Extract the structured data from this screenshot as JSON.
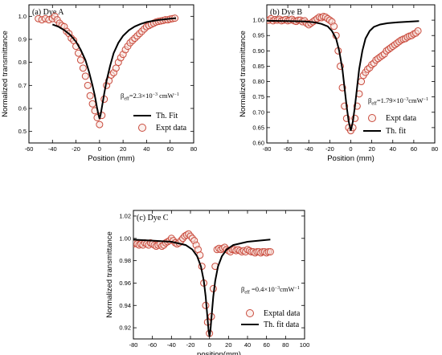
{
  "chart_data": [
    {
      "type": "scatter",
      "panel_label": "(a)  Dye A",
      "xlabel": "Position (mm)",
      "ylabel": "Normalized transmittance",
      "xlim": [
        -60,
        80
      ],
      "ylim": [
        0.45,
        1.05
      ],
      "xticks": [
        -60,
        -40,
        -20,
        0,
        20,
        40,
        60,
        80
      ],
      "xtick_labels": [
        "-60",
        "-40",
        "-20",
        "0",
        "20",
        "40",
        "60",
        "80"
      ],
      "yticks": [
        0.5,
        0.6,
        0.7,
        0.8,
        0.9,
        1.0
      ],
      "ytick_labels": [
        "0.5",
        "0.6",
        "0.7",
        "0.8",
        "0.9",
        "1.0"
      ],
      "annotation": {
        "base": "β",
        "sub": "eff",
        "text": "=2.3×10",
        "sup": "−3",
        "unit": " cmW",
        "unit_sup": "−1"
      },
      "legend_position": "lower-right",
      "legend": [
        "Th. Fit",
        "Expt data"
      ],
      "series": [
        {
          "name": "Th. Fit",
          "kind": "line",
          "x": [
            -40,
            -35,
            -30,
            -25,
            -20,
            -16,
            -12,
            -9,
            -6,
            -4,
            -2,
            -1,
            0,
            1,
            2,
            4,
            6,
            9,
            12,
            16,
            20,
            25,
            30,
            35,
            40,
            45,
            50,
            55,
            60,
            65
          ],
          "y": [
            0.965,
            0.955,
            0.94,
            0.92,
            0.89,
            0.855,
            0.81,
            0.76,
            0.7,
            0.655,
            0.6,
            0.575,
            0.555,
            0.575,
            0.605,
            0.665,
            0.72,
            0.785,
            0.84,
            0.885,
            0.915,
            0.94,
            0.956,
            0.967,
            0.975,
            0.98,
            0.984,
            0.987,
            0.99,
            0.992
          ]
        },
        {
          "name": "Expt data",
          "kind": "scatter",
          "x": [
            -52,
            -49,
            -46,
            -43,
            -40,
            -38,
            -36,
            -34,
            -32,
            -30,
            -28,
            -26,
            -24,
            -22,
            -20,
            -18,
            -16,
            -14,
            -12,
            -10,
            -8,
            -6,
            -4,
            -2,
            0,
            2,
            4,
            6,
            8,
            10,
            12,
            14,
            16,
            18,
            20,
            22,
            24,
            26,
            28,
            30,
            32,
            34,
            36,
            38,
            40,
            42,
            44,
            46,
            48,
            50,
            52,
            54,
            56,
            58,
            60,
            62,
            64
          ],
          "y": [
            0.99,
            0.985,
            0.99,
            0.985,
            0.99,
            1.0,
            0.985,
            0.97,
            0.96,
            0.955,
            0.935,
            0.925,
            0.905,
            0.895,
            0.87,
            0.84,
            0.81,
            0.775,
            0.74,
            0.7,
            0.655,
            0.62,
            0.59,
            0.56,
            0.53,
            0.57,
            0.64,
            0.7,
            0.72,
            0.745,
            0.755,
            0.775,
            0.8,
            0.82,
            0.835,
            0.855,
            0.87,
            0.885,
            0.895,
            0.905,
            0.915,
            0.925,
            0.935,
            0.945,
            0.955,
            0.96,
            0.965,
            0.97,
            0.975,
            0.978,
            0.98,
            0.982,
            0.985,
            0.985,
            0.988,
            0.99,
            0.992
          ]
        }
      ]
    },
    {
      "type": "scatter",
      "panel_label": "(b)  Dye B",
      "xlabel": "Position (mm)",
      "ylabel": "Normalized transmittance",
      "xlim": [
        -80,
        80
      ],
      "ylim": [
        0.6,
        1.05
      ],
      "xticks": [
        -80,
        -60,
        -40,
        -20,
        0,
        20,
        40,
        60,
        80
      ],
      "xtick_labels": [
        "-80",
        "-60",
        "-40",
        "-20",
        "0",
        "20",
        "40",
        "60",
        "80"
      ],
      "yticks": [
        0.6,
        0.65,
        0.7,
        0.75,
        0.8,
        0.85,
        0.9,
        0.95,
        1.0
      ],
      "ytick_labels": [
        "0.60",
        "0.65",
        "0.70",
        "0.75",
        "0.80",
        "0.85",
        "0.90",
        "0.95",
        "1.00"
      ],
      "annotation": {
        "base": "β",
        "sub": "eff",
        "text": "=1.79×10",
        "sup": "−3",
        "unit": "cmW",
        "unit_sup": "−1"
      },
      "legend_position": "lower-right",
      "legend": [
        "Expt data",
        "Th. fit"
      ],
      "series": [
        {
          "name": "Expt data",
          "kind": "scatter",
          "x": [
            -80,
            -78,
            -76,
            -74,
            -72,
            -70,
            -68,
            -66,
            -64,
            -62,
            -60,
            -58,
            -56,
            -54,
            -52,
            -50,
            -48,
            -46,
            -44,
            -42,
            -40,
            -38,
            -36,
            -34,
            -32,
            -30,
            -28,
            -26,
            -24,
            -22,
            -20,
            -18,
            -16,
            -14,
            -12,
            -10,
            -8,
            -6,
            -4,
            -2,
            0,
            2,
            4,
            6,
            8,
            10,
            12,
            14,
            16,
            18,
            20,
            22,
            24,
            26,
            28,
            30,
            32,
            34,
            36,
            38,
            40,
            42,
            44,
            46,
            48,
            50,
            52,
            54,
            56,
            58,
            60,
            62,
            64
          ],
          "y": [
            1.0,
            1.0,
            1.005,
            0.998,
            1.002,
            1.0,
            1.003,
            0.998,
            1.0,
            1.002,
            0.998,
            1.0,
            1.003,
            0.998,
            0.996,
            1.0,
            1.0,
            0.995,
            0.998,
            0.99,
            0.985,
            0.99,
            0.995,
            1.0,
            1.005,
            1.01,
            1.008,
            1.012,
            1.01,
            1.005,
            1.0,
            0.995,
            0.98,
            0.95,
            0.9,
            0.85,
            0.78,
            0.72,
            0.68,
            0.65,
            0.64,
            0.65,
            0.68,
            0.72,
            0.76,
            0.8,
            0.82,
            0.83,
            0.84,
            0.845,
            0.855,
            0.86,
            0.87,
            0.875,
            0.88,
            0.885,
            0.89,
            0.9,
            0.905,
            0.91,
            0.915,
            0.92,
            0.925,
            0.93,
            0.935,
            0.938,
            0.94,
            0.945,
            0.948,
            0.95,
            0.955,
            0.958,
            0.965
          ]
        },
        {
          "name": "Th. fit",
          "kind": "line",
          "x": [
            -80,
            -60,
            -45,
            -35,
            -28,
            -22,
            -18,
            -14,
            -11,
            -8,
            -6,
            -4,
            -2,
            0,
            2,
            4,
            6,
            8,
            11,
            14,
            18,
            22,
            28,
            35,
            45,
            55,
            65
          ],
          "y": [
            0.998,
            0.997,
            0.996,
            0.993,
            0.988,
            0.98,
            0.965,
            0.94,
            0.9,
            0.84,
            0.78,
            0.72,
            0.67,
            0.64,
            0.67,
            0.72,
            0.78,
            0.84,
            0.9,
            0.94,
            0.965,
            0.978,
            0.986,
            0.99,
            0.993,
            0.995,
            0.997
          ]
        }
      ]
    },
    {
      "type": "scatter",
      "panel_label": "(c)  Dye C",
      "xlabel": "position(mm)",
      "ylabel": "Normalized transmittance",
      "xlim": [
        -80,
        100
      ],
      "ylim": [
        0.91,
        1.025
      ],
      "xticks": [
        -80,
        -60,
        -40,
        -20,
        0,
        20,
        40,
        60,
        80,
        100
      ],
      "xtick_labels": [
        "-80",
        "-60",
        "-40",
        "-20",
        "0",
        "20",
        "40",
        "60",
        "80",
        "100"
      ],
      "yticks": [
        0.92,
        0.94,
        0.96,
        0.98,
        1.0,
        1.02
      ],
      "ytick_labels": [
        "0.92",
        "0.94",
        "0.96",
        "0.98",
        "1.00",
        "1.02"
      ],
      "annotation": {
        "base": "β",
        "sub": "eff",
        "text": " =0.4×10",
        "sup": "−3",
        "unit": "cmW",
        "unit_sup": "−1"
      },
      "legend_position": "lower-right",
      "legend": [
        "Exptal data",
        "Th. fit data"
      ],
      "series": [
        {
          "name": "Exptal data",
          "kind": "scatter",
          "x": [
            -84,
            -82,
            -80,
            -78,
            -76,
            -74,
            -72,
            -70,
            -68,
            -66,
            -64,
            -62,
            -60,
            -58,
            -56,
            -54,
            -52,
            -50,
            -48,
            -46,
            -44,
            -42,
            -40,
            -38,
            -36,
            -34,
            -32,
            -30,
            -28,
            -26,
            -24,
            -22,
            -20,
            -18,
            -16,
            -14,
            -12,
            -10,
            -8,
            -6,
            -4,
            -2,
            0,
            2,
            4,
            6,
            8,
            10,
            12,
            14,
            16,
            18,
            20,
            22,
            24,
            26,
            28,
            30,
            32,
            34,
            36,
            38,
            40,
            42,
            44,
            46,
            48,
            50,
            52,
            54,
            56,
            58,
            60,
            62,
            64
          ],
          "y": [
            0.998,
            0.996,
            0.995,
            0.996,
            0.995,
            0.994,
            0.995,
            0.994,
            0.996,
            0.995,
            0.994,
            0.996,
            0.995,
            0.994,
            0.993,
            0.994,
            0.995,
            0.993,
            0.994,
            0.996,
            0.997,
            0.998,
            1.0,
            0.998,
            0.996,
            0.995,
            0.996,
            0.998,
            1.0,
            1.002,
            1.003,
            1.004,
            1.002,
            1.0,
            0.998,
            0.994,
            0.99,
            0.985,
            0.975,
            0.96,
            0.94,
            0.925,
            0.915,
            0.93,
            0.955,
            0.975,
            0.99,
            0.991,
            0.99,
            0.991,
            0.992,
            0.99,
            0.989,
            0.988,
            0.99,
            0.99,
            0.989,
            0.99,
            0.989,
            0.988,
            0.989,
            0.988,
            0.99,
            0.989,
            0.988,
            0.988,
            0.987,
            0.988,
            0.988,
            0.987,
            0.988,
            0.988,
            0.987,
            0.988,
            0.988
          ]
        },
        {
          "name": "Th. fit data",
          "kind": "line",
          "x": [
            -84,
            -60,
            -40,
            -25,
            -18,
            -13,
            -9,
            -6,
            -4,
            -2,
            -1,
            0,
            1,
            2,
            4,
            6,
            9,
            13,
            18,
            25,
            40,
            64
          ],
          "y": [
            0.999,
            0.998,
            0.997,
            0.994,
            0.99,
            0.984,
            0.975,
            0.962,
            0.948,
            0.928,
            0.918,
            0.912,
            0.918,
            0.928,
            0.948,
            0.962,
            0.975,
            0.984,
            0.99,
            0.994,
            0.997,
            0.999
          ]
        }
      ]
    }
  ]
}
